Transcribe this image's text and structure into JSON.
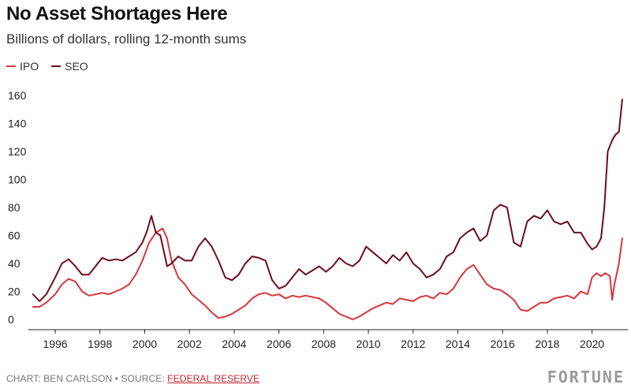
{
  "title": "No Asset Shortages Here",
  "subtitle": "Billions of dollars, rolling 12-month sums",
  "footer": {
    "credit": "CHART: BEN CARLSON • SOURCE: ",
    "source_link": "FEDERAL RESERVE",
    "brand": "FORTUNE"
  },
  "colors": {
    "IPO": "#d9363b",
    "SEO": "#6b0f1a",
    "axis": "#222222",
    "tick": "#222222"
  },
  "chart_data": {
    "type": "line",
    "title": "No Asset Shortages Here",
    "subtitle": "Billions of dollars, rolling 12-month sums",
    "xlabel": "",
    "ylabel": "",
    "xlim": [
      1994.8,
      2021.6
    ],
    "ylim": [
      0,
      160
    ],
    "yticks": [
      0,
      20,
      40,
      60,
      80,
      100,
      120,
      140,
      160
    ],
    "xticks": [
      1996,
      1998,
      2000,
      2002,
      2004,
      2006,
      2008,
      2010,
      2012,
      2014,
      2016,
      2018,
      2020
    ],
    "grid": false,
    "legend": "top-left",
    "series": [
      {
        "name": "IPO",
        "x": [
          1995.0,
          1995.3,
          1995.6,
          1996.0,
          1996.3,
          1996.6,
          1996.9,
          1997.2,
          1997.5,
          1997.8,
          1998.1,
          1998.4,
          1998.7,
          1999.0,
          1999.3,
          1999.6,
          1999.9,
          2000.2,
          2000.5,
          2000.8,
          2001.0,
          2001.2,
          2001.5,
          2001.8,
          2002.1,
          2002.4,
          2002.7,
          2003.0,
          2003.3,
          2003.6,
          2003.9,
          2004.2,
          2004.5,
          2004.8,
          2005.1,
          2005.4,
          2005.7,
          2006.0,
          2006.3,
          2006.6,
          2006.9,
          2007.2,
          2007.5,
          2007.8,
          2008.1,
          2008.4,
          2008.7,
          2009.0,
          2009.3,
          2009.6,
          2009.9,
          2010.2,
          2010.5,
          2010.8,
          2011.1,
          2011.4,
          2011.7,
          2012.0,
          2012.3,
          2012.6,
          2012.9,
          2013.2,
          2013.5,
          2013.8,
          2014.1,
          2014.4,
          2014.7,
          2015.0,
          2015.3,
          2015.6,
          2015.9,
          2016.2,
          2016.5,
          2016.8,
          2017.1,
          2017.4,
          2017.7,
          2018.0,
          2018.3,
          2018.6,
          2018.9,
          2019.2,
          2019.5,
          2019.8,
          2020.0,
          2020.2,
          2020.4,
          2020.6,
          2020.8,
          2020.9,
          2021.0,
          2021.2,
          2021.35
        ],
        "values": [
          9,
          9,
          12,
          18,
          25,
          29,
          27,
          20,
          17,
          18,
          19,
          18,
          20,
          22,
          25,
          32,
          42,
          55,
          62,
          65,
          58,
          42,
          30,
          25,
          18,
          14,
          10,
          5,
          1,
          2,
          4,
          7,
          10,
          15,
          18,
          19,
          17,
          18,
          15,
          17,
          16,
          17,
          16,
          15,
          12,
          8,
          4,
          2,
          0,
          2,
          5,
          8,
          10,
          12,
          11,
          15,
          14,
          13,
          16,
          17,
          15,
          19,
          18,
          22,
          30,
          36,
          39,
          32,
          25,
          22,
          21,
          18,
          14,
          7,
          6,
          9,
          12,
          12,
          15,
          16,
          17,
          15,
          20,
          18,
          30,
          33,
          31,
          33,
          31,
          14,
          25,
          40,
          58
        ]
      },
      {
        "name": "SEO",
        "x": [
          1995.0,
          1995.3,
          1995.6,
          1996.0,
          1996.3,
          1996.6,
          1996.9,
          1997.2,
          1997.5,
          1997.8,
          1998.1,
          1998.4,
          1998.7,
          1999.0,
          1999.3,
          1999.6,
          1999.9,
          2000.1,
          2000.3,
          2000.5,
          2000.7,
          2001.0,
          2001.2,
          2001.5,
          2001.8,
          2002.1,
          2002.4,
          2002.7,
          2003.0,
          2003.3,
          2003.6,
          2003.9,
          2004.2,
          2004.5,
          2004.8,
          2005.1,
          2005.4,
          2005.7,
          2006.0,
          2006.3,
          2006.6,
          2006.9,
          2007.2,
          2007.5,
          2007.8,
          2008.1,
          2008.4,
          2008.7,
          2009.0,
          2009.3,
          2009.6,
          2009.9,
          2010.2,
          2010.5,
          2010.8,
          2011.1,
          2011.4,
          2011.7,
          2012.0,
          2012.3,
          2012.6,
          2012.9,
          2013.2,
          2013.5,
          2013.8,
          2014.1,
          2014.4,
          2014.7,
          2015.0,
          2015.3,
          2015.6,
          2015.9,
          2016.2,
          2016.5,
          2016.8,
          2017.1,
          2017.4,
          2017.7,
          2018.0,
          2018.3,
          2018.6,
          2018.9,
          2019.2,
          2019.5,
          2019.8,
          2020.0,
          2020.2,
          2020.4,
          2020.55,
          2020.7,
          2020.9,
          2021.05,
          2021.2,
          2021.35
        ],
        "values": [
          18,
          13,
          18,
          30,
          40,
          43,
          38,
          32,
          32,
          38,
          44,
          42,
          43,
          42,
          45,
          48,
          55,
          63,
          74,
          62,
          60,
          38,
          40,
          45,
          42,
          42,
          52,
          58,
          52,
          42,
          30,
          28,
          32,
          40,
          45,
          44,
          42,
          28,
          22,
          24,
          30,
          36,
          32,
          35,
          38,
          34,
          38,
          44,
          40,
          38,
          42,
          52,
          48,
          44,
          40,
          46,
          42,
          48,
          40,
          36,
          30,
          32,
          36,
          45,
          48,
          58,
          62,
          65,
          56,
          60,
          78,
          82,
          80,
          55,
          52,
          70,
          74,
          72,
          78,
          70,
          68,
          70,
          62,
          62,
          54,
          50,
          52,
          58,
          80,
          120,
          128,
          132,
          134,
          157
        ]
      }
    ]
  }
}
